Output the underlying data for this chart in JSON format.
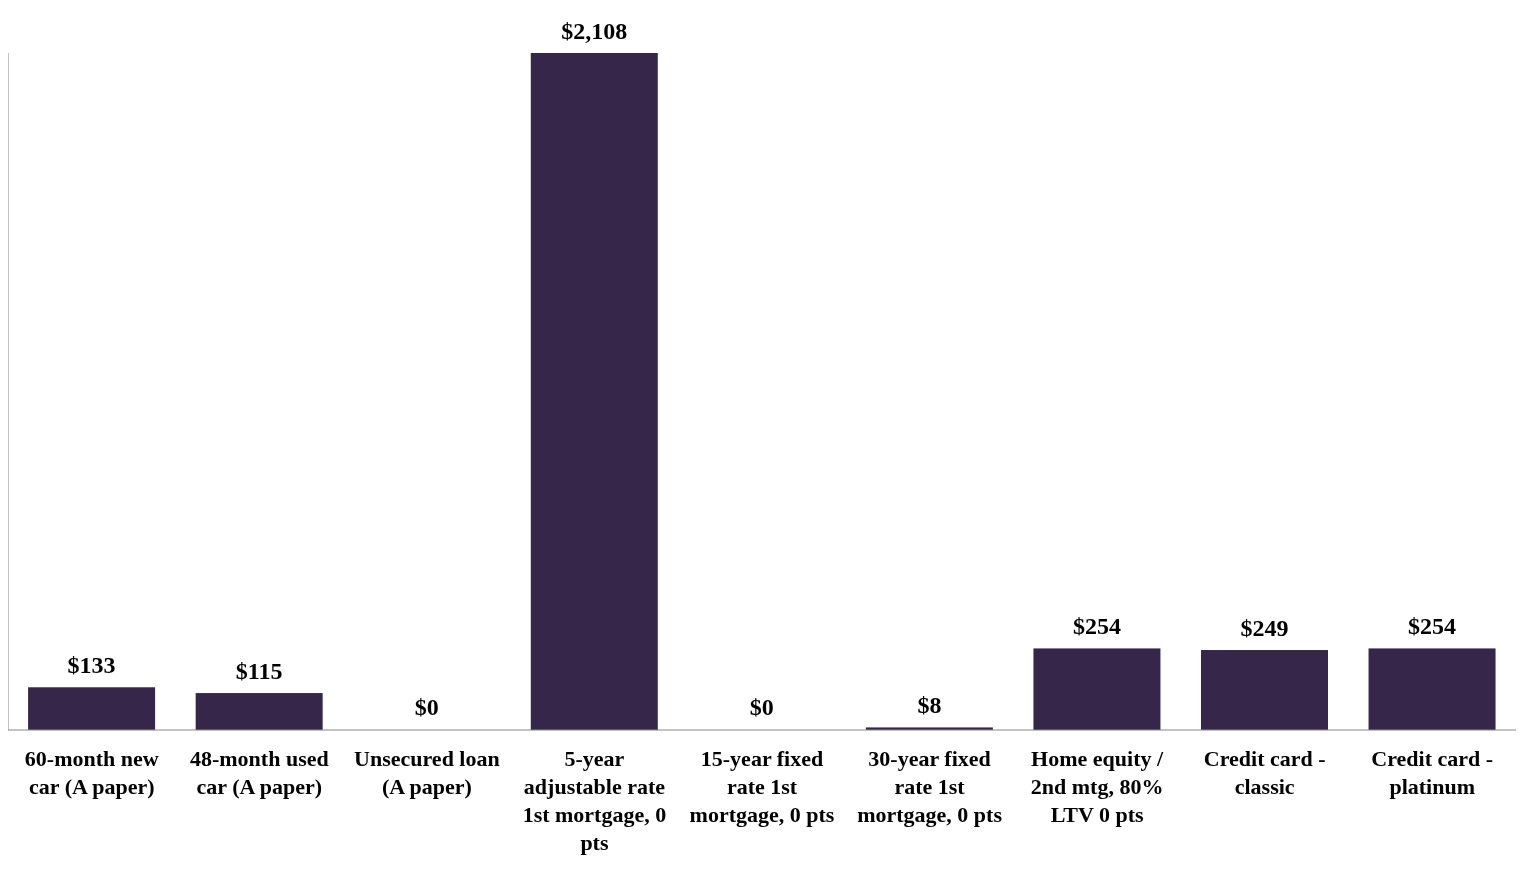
{
  "chart_data": {
    "type": "bar",
    "categories": [
      "60-month new car (A paper)",
      "48-month used car (A paper)",
      "Unsecured loan (A paper)",
      "5-year adjustable rate 1st mortgage, 0 pts",
      "15-year fixed rate 1st mortgage, 0 pts",
      "30-year fixed rate 1st mortgage, 0 pts",
      "Home equity / 2nd mtg, 80% LTV 0 pts",
      "Credit card - classic",
      "Credit card - platinum"
    ],
    "values": [
      133,
      115,
      0,
      2108,
      0,
      8,
      254,
      249,
      254
    ],
    "value_labels": [
      "$133",
      "$115",
      "$0",
      "$2,108",
      "$0",
      "$8",
      "$254",
      "$249",
      "$254"
    ],
    "color": "#35264a"
  }
}
